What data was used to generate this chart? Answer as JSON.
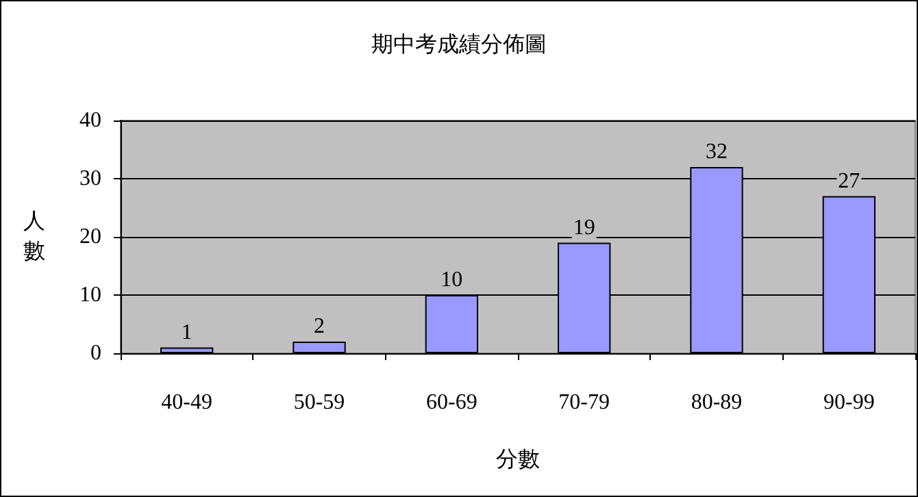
{
  "chart_data": {
    "type": "bar",
    "title": "期中考成績分佈圖",
    "xlabel": "分數",
    "ylabel": "人數",
    "categories": [
      "40-49",
      "50-59",
      "60-69",
      "70-79",
      "80-89",
      "90-99"
    ],
    "values": [
      1,
      2,
      10,
      19,
      32,
      27
    ],
    "color": "#9999ff",
    "ylim": [
      0,
      40
    ],
    "yticks": [
      0,
      10,
      20,
      30,
      40
    ],
    "grid": "y",
    "data_labels": true
  }
}
